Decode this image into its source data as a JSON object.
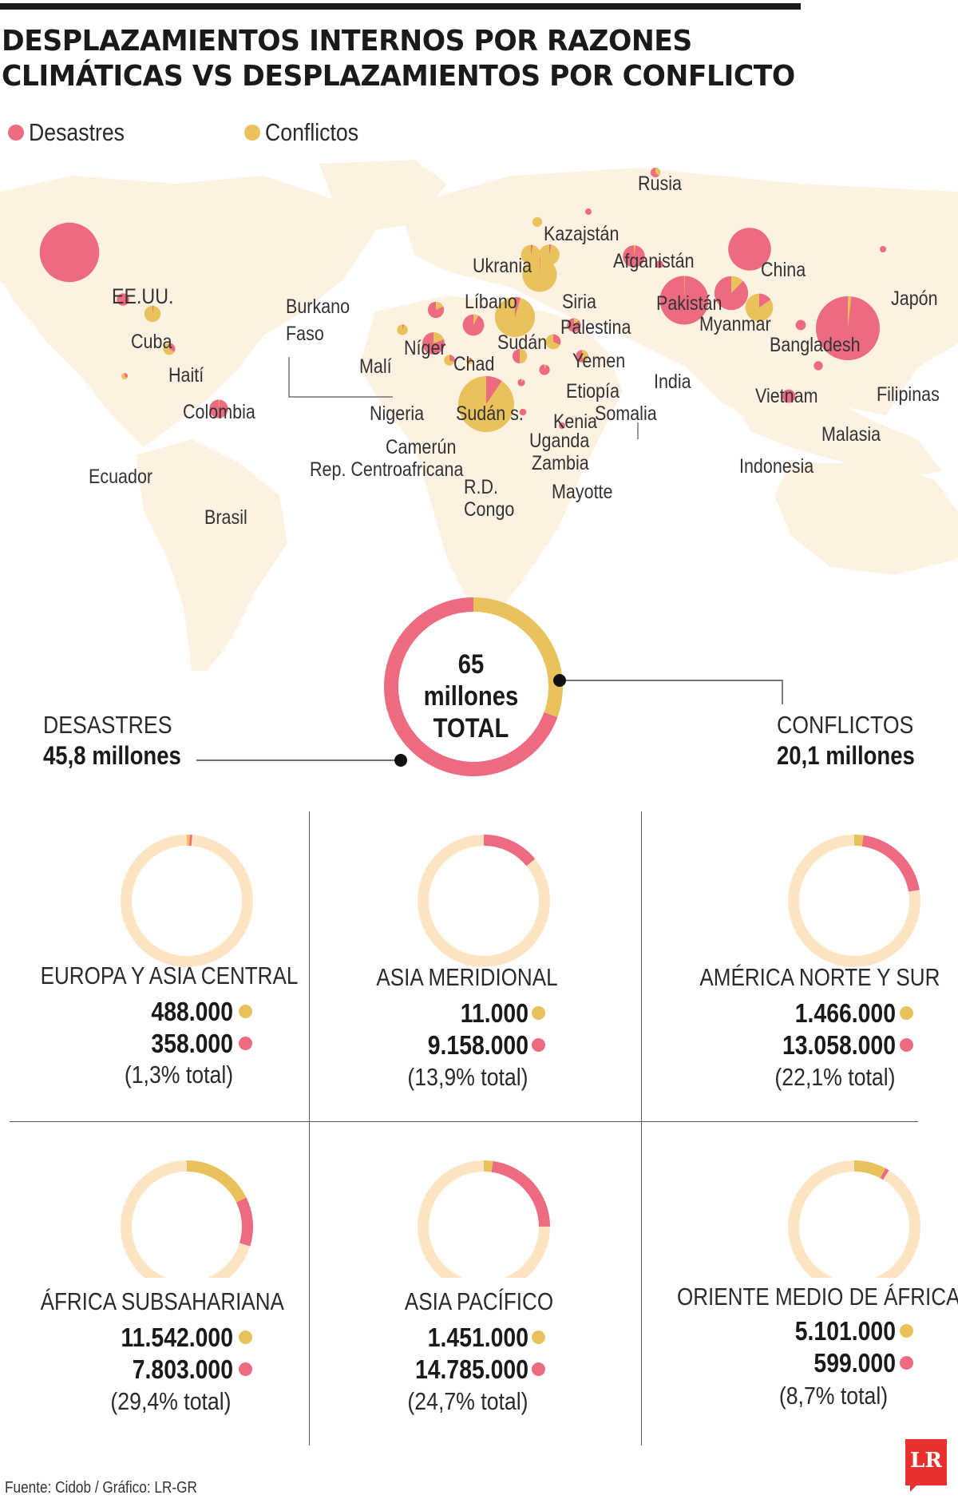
{
  "header": {
    "title_line1": "DESPLAZAMIENTOS INTERNOS POR RAZONES",
    "title_line2": "CLIMÁTICAS VS DESPLAZAMIENTOS POR CONFLICTO"
  },
  "legend": {
    "disasters_label": "Desastres",
    "conflicts_label": "Conflictos",
    "disasters_color": "#ec6b80",
    "conflicts_color": "#e9c25c"
  },
  "map": {
    "land_color": "#fdf2e2",
    "countries": [
      {
        "name": "EE.UU.",
        "disasters": 30,
        "conflicts": 0
      },
      {
        "name": "Cuba",
        "disasters": 1.3,
        "conflicts": 0
      },
      {
        "name": "Haití",
        "disasters": 0.05,
        "conflicts": 2.2
      },
      {
        "name": "Colombia",
        "disasters": 0.4,
        "conflicts": 0.8
      },
      {
        "name": "Ecuador",
        "disasters": 0.1,
        "conflicts": 0.2
      },
      {
        "name": "Brasil",
        "disasters": 2.9,
        "conflicts": 0.05
      },
      {
        "name": "Burkano Faso",
        "disasters": 0.05,
        "conflicts": 0.9
      },
      {
        "name": "Malí",
        "disasters": 0.05,
        "conflicts": 0.9
      },
      {
        "name": "Níger",
        "disasters": 1.8,
        "conflicts": 0.4
      },
      {
        "name": "Nigeria",
        "disasters": 3.4,
        "conflicts": 0.8
      },
      {
        "name": "Chad",
        "disasters": 3.6,
        "conflicts": 0.3
      },
      {
        "name": "Camerún",
        "disasters": 0.3,
        "conflicts": 0.7
      },
      {
        "name": "Rep. Centroafricana",
        "disasters": 0.05,
        "conflicts": 0.3
      },
      {
        "name": "Ukrania",
        "disasters": 0,
        "conflicts": 0.8
      },
      {
        "name": "Líbano",
        "disasters": 0.1,
        "conflicts": 3.2
      },
      {
        "name": "Siria",
        "disasters": 0.1,
        "conflicts": 3.5
      },
      {
        "name": "Palestina",
        "disasters": 0.05,
        "conflicts": 10
      },
      {
        "name": "Sudán",
        "disasters": 0.6,
        "conflicts": 13
      },
      {
        "name": "Sudán s.",
        "disasters": 0.9,
        "conflicts": 0.9
      },
      {
        "name": "Yemen",
        "disasters": 1.4,
        "conflicts": 0.2
      },
      {
        "name": "Etiopía",
        "disasters": 0.6,
        "conflicts": 1.3
      },
      {
        "name": "Somalia",
        "disasters": 0.7,
        "conflicts": 0.6
      },
      {
        "name": "Kenia",
        "disasters": 0.9,
        "conflicts": 0.05
      },
      {
        "name": "Uganda",
        "disasters": 0.4,
        "conflicts": 0.05
      },
      {
        "name": "Zambia",
        "disasters": 0.4,
        "conflicts": 0
      },
      {
        "name": "Mayotte",
        "disasters": 0.3,
        "conflicts": 0
      },
      {
        "name": "R.D. Congo",
        "disasters": 2.5,
        "conflicts": 24
      },
      {
        "name": "Rusia",
        "disasters": 0.5,
        "conflicts": 0.3
      },
      {
        "name": "Kazajstán",
        "disasters": 0.3,
        "conflicts": 0
      },
      {
        "name": "Afganistán",
        "disasters": 4,
        "conflicts": 0.1
      },
      {
        "name": "Pakistán",
        "disasters": 0.5,
        "conflicts": 0
      },
      {
        "name": "China",
        "disasters": 15.5,
        "conflicts": 0
      },
      {
        "name": "India",
        "disasters": 20,
        "conflicts": 0.1
      },
      {
        "name": "Myanmar",
        "disasters": 8.5,
        "conflicts": 1.2
      },
      {
        "name": "Bangladesh",
        "disasters": 1,
        "conflicts": 5.5
      },
      {
        "name": "Japón",
        "disasters": 0.3,
        "conflicts": 0
      },
      {
        "name": "Vietnam",
        "disasters": 0.9,
        "conflicts": 0
      },
      {
        "name": "Filipinas",
        "disasters": 34,
        "conflicts": 0.6
      },
      {
        "name": "Malasia",
        "disasters": 0.7,
        "conflicts": 0
      },
      {
        "name": "Indonesia",
        "disasters": 1.5,
        "conflicts": 0
      }
    ]
  },
  "labels": {
    "usa": "EE.UU.",
    "cuba": "Cuba",
    "haiti": "Haití",
    "colombia": "Colombia",
    "ecuador": "Ecuador",
    "brasil": "Brasil",
    "burkano": "Burkano",
    "faso": "Faso",
    "mali": "Malí",
    "niger": "Níger",
    "nigeria": "Nigeria",
    "chad": "Chad",
    "camerun": "Camerún",
    "rca": "Rep. Centroafricana",
    "ukrania": "Ukrania",
    "libano": "Líbano",
    "siria": "Siria",
    "palestina": "Palestina",
    "sudan": "Sudán",
    "sudan_s": "Sudán s.",
    "yemen": "Yemen",
    "etiopia": "Etiopía",
    "somalia": "Somalia",
    "kenia": "Kenia",
    "uganda": "Uganda",
    "zambia": "Zambia",
    "mayotte": "Mayotte",
    "rd": "R.D.",
    "congo": "Congo",
    "rusia": "Rusia",
    "kazajstan": "Kazajstán",
    "afganistan": "Afganistán",
    "pakistan": "Pakistán",
    "china": "China",
    "india": "India",
    "myanmar": "Myanmar",
    "bangladesh": "Bangladesh",
    "japon": "Japón",
    "vietnam": "Vietnam",
    "filipinas": "Filipinas",
    "malasia": "Malasia",
    "indonesia": "Indonesia"
  },
  "total": {
    "value": "65",
    "unit": "millones",
    "label": "TOTAL",
    "disasters_label": "DESASTRES",
    "disasters_value": "45,8 millones",
    "conflicts_label": "CONFLICTOS",
    "conflicts_value": "20,1 millones"
  },
  "regions": [
    {
      "name": "EUROPA Y ASIA CENTRAL",
      "conflicts_text": "488.000",
      "disasters_text": "358.000",
      "pct": "(1,3% total)"
    },
    {
      "name": "ASIA MERIDIONAL",
      "conflicts_text": "11.000",
      "disasters_text": "9.158.000",
      "pct": "(13,9% total)"
    },
    {
      "name": "AMÉRICA NORTE Y SUR",
      "conflicts_text": "1.466.000",
      "disasters_text": "13.058.000",
      "pct": "(22,1% total)"
    },
    {
      "name": "ÁFRICA SUBSAHARIANA",
      "conflicts_text": "11.542.000",
      "disasters_text": "7.803.000",
      "pct": "(29,4% total)"
    },
    {
      "name": "ASIA PACÍFICO",
      "conflicts_text": "1.451.000",
      "disasters_text": "14.785.000",
      "pct": "(24,7% total)"
    },
    {
      "name": "ORIENTE MEDIO DE ÁFRICA",
      "conflicts_text": "5.101.000",
      "disasters_text": "599.000",
      "pct": "(8,7% total)"
    }
  ],
  "chart_data": [
    {
      "type": "pie",
      "variant": "donut",
      "categories": [
        "Desastres",
        "Conflictos"
      ],
      "values": [
        45.8,
        20.1
      ],
      "unit": "millones",
      "total": 65
    },
    {
      "type": "pie",
      "variant": "donut-grid",
      "categories": [
        "EUROPA Y ASIA CENTRAL",
        "ASIA MERIDIONAL",
        "AMÉRICA NORTE Y SUR",
        "ÁFRICA SUBSAHARIANA",
        "ASIA PACÍFICO",
        "ORIENTE MEDIO DE ÁFRICA"
      ],
      "series": [
        {
          "name": "Conflictos",
          "values": [
            488000,
            11000,
            1466000,
            11542000,
            1451000,
            5101000
          ]
        },
        {
          "name": "Desastres",
          "values": [
            358000,
            9158000,
            13058000,
            7803000,
            14785000,
            599000
          ]
        }
      ],
      "share_of_total_pct": [
        1.3,
        13.9,
        22.1,
        29.4,
        24.7,
        8.7
      ]
    }
  ],
  "footer": {
    "source": "Fuente: Cidob / Gráfico: LR-GR",
    "logo": "LR"
  }
}
